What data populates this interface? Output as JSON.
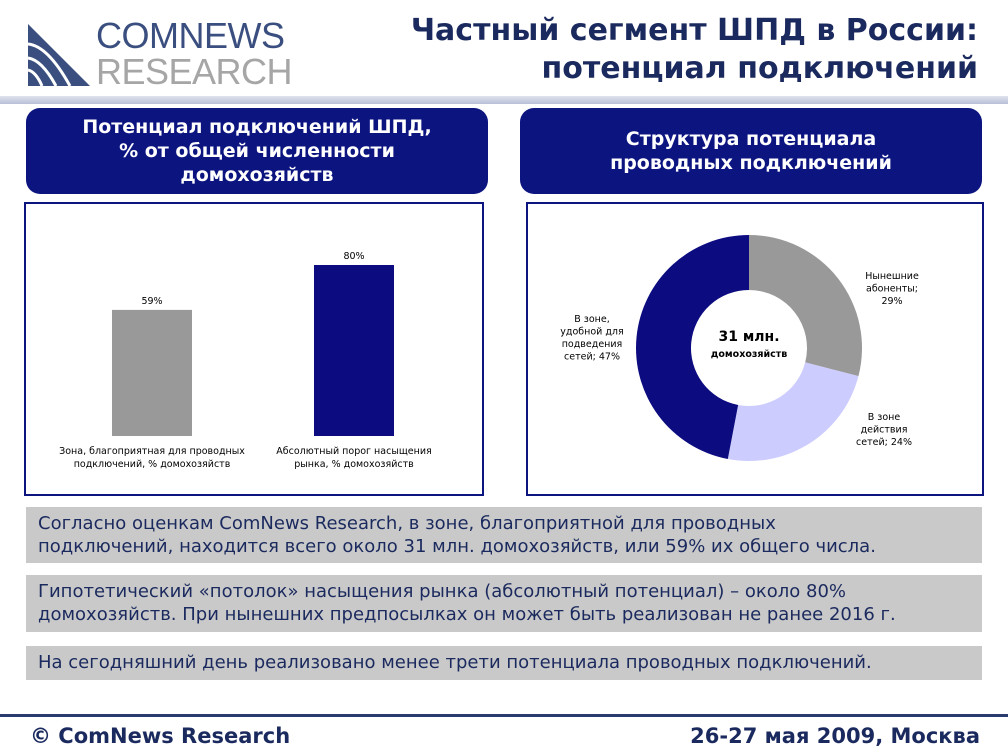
{
  "logo": {
    "line1": "COMNEWS",
    "line2": "RESEARCH"
  },
  "header": {
    "title_line1": "Частный сегмент ШПД в России:",
    "title_line2": "потенциал подключений"
  },
  "left_panel": {
    "title_line1": "Потенциал подключений ШПД,",
    "title_line2": "% от общей численности",
    "title_line3": "домохозяйств"
  },
  "right_panel": {
    "title_line1": "Структура потенциала",
    "title_line2": "проводных подключений"
  },
  "chart_data": [
    {
      "type": "bar",
      "categories": [
        [
          "Зона, благоприятная для проводных",
          "подключений, % домохозяйств"
        ],
        [
          "Абсолютный порог насыщения",
          "рынка, % домохозяйств"
        ]
      ],
      "values": [
        59,
        80
      ],
      "labels": [
        "59%",
        "80%"
      ],
      "colors": [
        "#999999",
        "#0c0c80"
      ],
      "ylim": [
        0,
        100
      ],
      "grid": false
    },
    {
      "type": "pie",
      "donut": true,
      "center_label": [
        "31 млн.",
        "домохозяйств"
      ],
      "slices": [
        {
          "value": 29,
          "label": [
            "Нынешние",
            "абоненты;",
            "29%"
          ],
          "color": "#999999"
        },
        {
          "value": 24,
          "label": [
            "В зоне",
            "действия",
            "сетей; 24%"
          ],
          "color": "#ccccff"
        },
        {
          "value": 47,
          "label": [
            "В зоне,",
            "удобной для",
            "подведения",
            "сетей; 47%"
          ],
          "color": "#0c0c80"
        }
      ]
    }
  ],
  "notes": [
    {
      "line1": "Согласно оценкам ComNews Research, в зоне, благоприятной для проводных",
      "line2": "подключений, находится всего около 31 млн. домохозяйств, или 59% их общего числа."
    },
    {
      "line1": "Гипотетический «потолок» насыщения рынка (абсолютный потенциал) – около 80%",
      "line2": "домохозяйств. При нынешних предпосылках он может быть реализован не ранее 2016 г."
    },
    {
      "line1": "На сегодняшний день реализовано менее трети потенциала проводных подключений."
    }
  ],
  "footer": {
    "left": "© ComNews Research",
    "right": "26-27 мая 2009, Москва"
  }
}
